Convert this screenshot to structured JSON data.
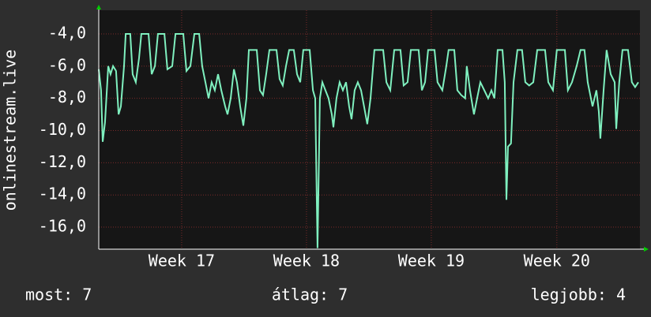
{
  "chart_data": {
    "type": "line",
    "ylabel": "onlinestream.live",
    "xlim": [
      0,
      30.35
    ],
    "xticks": [
      {
        "value": 4.65,
        "label": "Week 17"
      },
      {
        "value": 11.65,
        "label": "Week 18"
      },
      {
        "value": 18.65,
        "label": "Week 19"
      },
      {
        "value": 25.69,
        "label": "Week 20"
      }
    ],
    "ylim": [
      -17.37,
      -2.53
    ],
    "yticks": [
      {
        "value": -4,
        "label": "-4,0"
      },
      {
        "value": -6,
        "label": "-6,0"
      },
      {
        "value": -8,
        "label": "-8,0"
      },
      {
        "value": -10,
        "label": "-10,0"
      },
      {
        "value": -12,
        "label": "-12,0"
      },
      {
        "value": -14,
        "label": "-14,0"
      },
      {
        "value": -16,
        "label": "-16,0"
      }
    ],
    "grid": true,
    "x": [
      0,
      0.13,
      0.22,
      0.35,
      0.53,
      0.66,
      0.8,
      0.97,
      1.11,
      1.24,
      1.42,
      1.51,
      1.77,
      1.9,
      2.08,
      2.26,
      2.39,
      2.79,
      2.97,
      3.15,
      3.32,
      3.68,
      3.85,
      4.12,
      4.3,
      4.74,
      4.92,
      5.14,
      5.36,
      5.63,
      5.8,
      5.98,
      6.16,
      6.33,
      6.51,
      6.69,
      6.87,
      7.09,
      7.22,
      7.4,
      7.58,
      7.75,
      7.93,
      8.11,
      8.28,
      8.42,
      8.86,
      9.04,
      9.21,
      9.39,
      9.57,
      9.97,
      10.14,
      10.32,
      10.5,
      10.68,
      10.94,
      11.12,
      11.3,
      11.47,
      11.83,
      12.01,
      12.14,
      12.27,
      12.4,
      12.54,
      12.71,
      12.89,
      13.07,
      13.16,
      13.33,
      13.51,
      13.69,
      13.87,
      14.04,
      14.18,
      14.35,
      14.53,
      14.71,
      14.88,
      15.06,
      15.24,
      15.46,
      15.95,
      16.13,
      16.35,
      16.57,
      16.92,
      17.1,
      17.32,
      17.5,
      17.94,
      18.12,
      18.3,
      18.47,
      18.83,
      19,
      19.27,
      19.49,
      19.62,
      19.94,
      20.11,
      20.33,
      20.55,
      20.64,
      20.82,
      21.04,
      21.22,
      21.4,
      21.62,
      21.84,
      22.02,
      22.19,
      22.37,
      22.64,
      22.77,
      22.86,
      22.95,
      23.12,
      23.26,
      23.48,
      23.74,
      23.92,
      24.14,
      24.37,
      24.59,
      25.03,
      25.21,
      25.47,
      25.69,
      26.14,
      26.31,
      26.54,
      26.8,
      27.02,
      27.24,
      27.42,
      27.69,
      27.91,
      28.04,
      28.13,
      28.31,
      28.48,
      28.71,
      28.93,
      29.02,
      29.19,
      29.37,
      29.68,
      29.9,
      30.08,
      30.26
    ],
    "series": [
      {
        "color": "#7ff0bf",
        "values": [
          -6.2,
          -7.5,
          -10.7,
          -9.5,
          -6,
          -6.5,
          -6,
          -6.3,
          -9,
          -8.5,
          -6,
          -4,
          -4,
          -6.5,
          -7,
          -5.5,
          -4,
          -4,
          -6.5,
          -6,
          -4,
          -4,
          -6.2,
          -6,
          -4,
          -4,
          -6.3,
          -6,
          -4,
          -4,
          -6,
          -7,
          -8,
          -7,
          -7.5,
          -6.5,
          -7.5,
          -8.5,
          -9,
          -8,
          -6.2,
          -7,
          -8.5,
          -9.7,
          -8,
          -5,
          -5,
          -7.5,
          -7.8,
          -6.5,
          -5,
          -5,
          -6.8,
          -7.2,
          -6,
          -5,
          -5,
          -6.5,
          -7,
          -5,
          -5,
          -7.5,
          -8,
          -17.3,
          -8,
          -7,
          -7.5,
          -8,
          -9,
          -9.8,
          -8,
          -7,
          -7.5,
          -7,
          -8.5,
          -9.3,
          -7.5,
          -7,
          -7.5,
          -8.5,
          -9.6,
          -8,
          -5,
          -5,
          -7,
          -7.5,
          -5,
          -5,
          -7.2,
          -7,
          -5,
          -5,
          -7.5,
          -7,
          -5,
          -5,
          -7,
          -7.5,
          -6,
          -5,
          -5,
          -7.5,
          -7.8,
          -8,
          -6,
          -7.5,
          -9,
          -8,
          -7,
          -7.5,
          -8,
          -7.5,
          -8,
          -5,
          -5,
          -7,
          -14.3,
          -11,
          -10.8,
          -7,
          -5,
          -5,
          -7,
          -7.2,
          -7,
          -5,
          -5,
          -7,
          -7.5,
          -5,
          -5,
          -7.5,
          -7,
          -6,
          -5,
          -5,
          -7,
          -8.5,
          -7.5,
          -8.8,
          -10.5,
          -7.5,
          -5,
          -6.5,
          -7,
          -9.9,
          -7,
          -5,
          -5,
          -7,
          -7.3,
          -7
        ]
      }
    ],
    "footer": [
      "most: 7",
      "átlag: 7",
      "legjobb: 4"
    ]
  }
}
